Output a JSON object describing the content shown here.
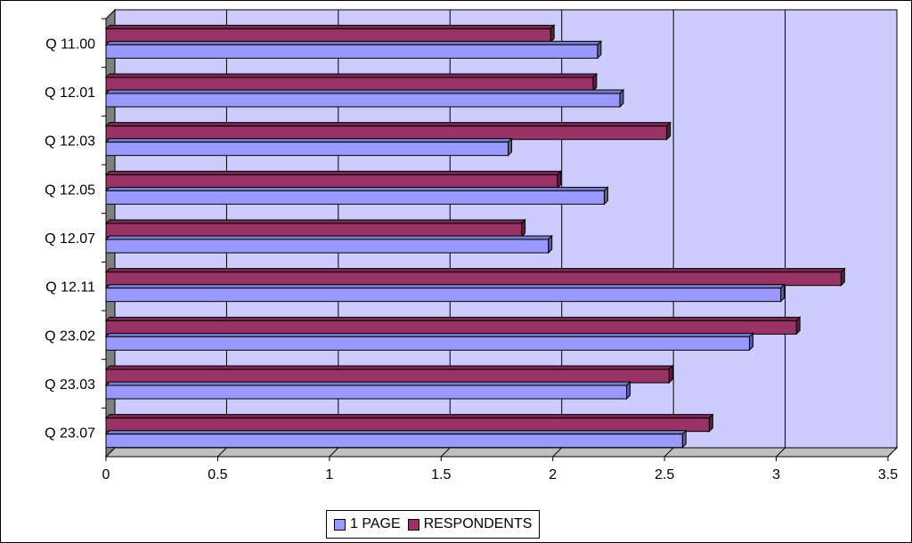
{
  "chart_data": {
    "type": "bar",
    "orientation": "horizontal",
    "categories": [
      "Q 11.00",
      "Q 12.01",
      "Q 12.03",
      "Q 12.05",
      "Q 12.07",
      "Q 12.11",
      "Q 23.02",
      "Q 23.03",
      "Q 23.07"
    ],
    "series": [
      {
        "name": "1 PAGE",
        "color": "#9999ff",
        "values": [
          2.2,
          2.3,
          1.8,
          2.23,
          1.98,
          3.02,
          2.88,
          2.33,
          2.58
        ]
      },
      {
        "name": "RESPONDENTS",
        "color": "#993366",
        "values": [
          1.99,
          2.18,
          2.51,
          2.02,
          1.86,
          3.29,
          3.09,
          2.52,
          2.7
        ]
      }
    ],
    "xlim": [
      0,
      3.5
    ],
    "x_ticks": [
      "0",
      "0.5",
      "1",
      "1.5",
      "2",
      "2.5",
      "3",
      "3.5"
    ],
    "grid": true,
    "legend_position": "bottom",
    "plot_background": "#ccccff",
    "wall_color": "#808080"
  }
}
